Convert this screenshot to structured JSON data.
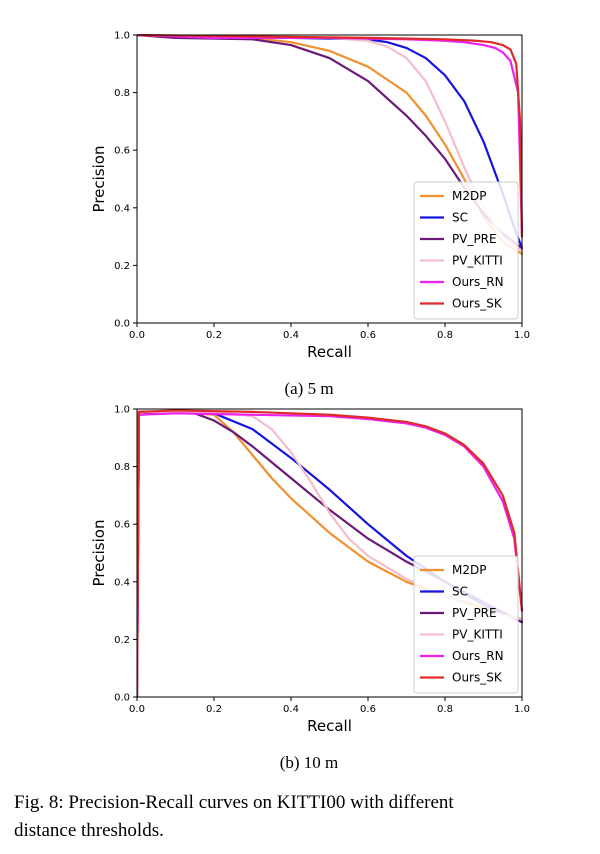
{
  "figure": {
    "caption_line1": "Fig. 8: Precision-Recall curves on KITTI00 with different",
    "caption_line2": "distance thresholds."
  },
  "series_styles": [
    {
      "name": "M2DP",
      "color": "#f0912e"
    },
    {
      "name": "SC",
      "color": "#1515e0"
    },
    {
      "name": "PV_PRE",
      "color": "#6b1a78"
    },
    {
      "name": "PV_KITTI",
      "color": "#f2bfc7"
    },
    {
      "name": "Ours_RN",
      "color": "#ee22ee"
    },
    {
      "name": "Ours_SK",
      "color": "#dd2a2a"
    }
  ],
  "chart_data": [
    {
      "type": "line",
      "subcaption": "(a) 5 m",
      "xlabel": "Recall",
      "ylabel": "Precision",
      "xlim": [
        0,
        1
      ],
      "ylim": [
        0,
        1
      ],
      "xticks": [
        "0.0",
        "0.2",
        "0.4",
        "0.6",
        "0.8",
        "1.0"
      ],
      "yticks": [
        "0.0",
        "0.2",
        "0.4",
        "0.6",
        "0.8",
        "1.0"
      ],
      "legend_position": "lower-right",
      "series": [
        {
          "name": "M2DP",
          "x": [
            0,
            0.1,
            0.3,
            0.4,
            0.5,
            0.6,
            0.7,
            0.75,
            0.8,
            0.85,
            0.9,
            0.95,
            1.0
          ],
          "y": [
            1.0,
            0.99,
            0.99,
            0.975,
            0.945,
            0.89,
            0.8,
            0.72,
            0.62,
            0.5,
            0.37,
            0.28,
            0.24
          ]
        },
        {
          "name": "SC",
          "x": [
            0,
            0.2,
            0.4,
            0.6,
            0.65,
            0.7,
            0.75,
            0.8,
            0.85,
            0.9,
            0.95,
            0.98,
            1.0
          ],
          "y": [
            1.0,
            0.99,
            0.99,
            0.985,
            0.975,
            0.955,
            0.92,
            0.86,
            0.77,
            0.63,
            0.45,
            0.33,
            0.26
          ]
        },
        {
          "name": "PV_PRE",
          "x": [
            0,
            0.1,
            0.3,
            0.4,
            0.5,
            0.6,
            0.7,
            0.75,
            0.8,
            0.85,
            0.9,
            0.95,
            1.0
          ],
          "y": [
            1.0,
            0.99,
            0.985,
            0.965,
            0.92,
            0.84,
            0.72,
            0.65,
            0.57,
            0.47,
            0.38,
            0.31,
            0.26
          ]
        },
        {
          "name": "PV_KITTI",
          "x": [
            0,
            0.3,
            0.5,
            0.6,
            0.65,
            0.7,
            0.75,
            0.8,
            0.85,
            0.9,
            0.95,
            1.0
          ],
          "y": [
            1.0,
            0.99,
            0.99,
            0.98,
            0.96,
            0.92,
            0.84,
            0.7,
            0.54,
            0.4,
            0.3,
            0.25
          ]
        },
        {
          "name": "Ours_RN",
          "x": [
            0,
            0.2,
            0.5,
            0.7,
            0.8,
            0.85,
            0.9,
            0.93,
            0.95,
            0.97,
            0.99,
            1.0
          ],
          "y": [
            1.0,
            0.99,
            0.99,
            0.985,
            0.98,
            0.975,
            0.965,
            0.955,
            0.94,
            0.91,
            0.8,
            0.3
          ]
        },
        {
          "name": "Ours_SK",
          "x": [
            0,
            0.3,
            0.6,
            0.8,
            0.88,
            0.92,
            0.95,
            0.97,
            0.985,
            0.995,
            1.0
          ],
          "y": [
            1.0,
            0.995,
            0.99,
            0.985,
            0.98,
            0.975,
            0.965,
            0.95,
            0.9,
            0.7,
            0.3
          ]
        }
      ]
    },
    {
      "type": "line",
      "subcaption": "(b) 10 m",
      "xlabel": "Recall",
      "ylabel": "Precision",
      "xlim": [
        0,
        1
      ],
      "ylim": [
        0,
        1
      ],
      "xticks": [
        "0.0",
        "0.2",
        "0.4",
        "0.6",
        "0.8",
        "1.0"
      ],
      "yticks": [
        "0.0",
        "0.2",
        "0.4",
        "0.6",
        "0.8",
        "1.0"
      ],
      "legend_position": "lower-right",
      "series": [
        {
          "name": "M2DP",
          "x": [
            0,
            0.005,
            0.1,
            0.2,
            0.25,
            0.3,
            0.35,
            0.4,
            0.45,
            0.5,
            0.55,
            0.6,
            0.7,
            0.8,
            0.9,
            1.0
          ],
          "y": [
            0,
            0.99,
            0.99,
            0.98,
            0.92,
            0.84,
            0.76,
            0.69,
            0.63,
            0.57,
            0.52,
            0.47,
            0.4,
            0.35,
            0.31,
            0.27
          ]
        },
        {
          "name": "SC",
          "x": [
            0,
            0.005,
            0.1,
            0.2,
            0.3,
            0.4,
            0.5,
            0.6,
            0.7,
            0.8,
            0.9,
            1.0
          ],
          "y": [
            0,
            0.99,
            0.99,
            0.985,
            0.93,
            0.83,
            0.72,
            0.6,
            0.49,
            0.4,
            0.32,
            0.26
          ]
        },
        {
          "name": "PV_PRE",
          "x": [
            0,
            0.005,
            0.05,
            0.15,
            0.2,
            0.25,
            0.3,
            0.4,
            0.5,
            0.6,
            0.7,
            0.8,
            0.9,
            1.0
          ],
          "y": [
            0,
            0.98,
            0.985,
            0.985,
            0.96,
            0.92,
            0.87,
            0.76,
            0.65,
            0.55,
            0.47,
            0.4,
            0.33,
            0.26
          ]
        },
        {
          "name": "PV_KITTI",
          "x": [
            0,
            0.005,
            0.2,
            0.3,
            0.35,
            0.4,
            0.45,
            0.5,
            0.55,
            0.6,
            0.7,
            0.8,
            0.9,
            1.0
          ],
          "y": [
            0,
            0.99,
            0.99,
            0.975,
            0.93,
            0.85,
            0.75,
            0.64,
            0.55,
            0.49,
            0.41,
            0.35,
            0.3,
            0.27
          ]
        },
        {
          "name": "Ours_RN",
          "x": [
            0,
            0.005,
            0.1,
            0.3,
            0.5,
            0.6,
            0.7,
            0.75,
            0.8,
            0.85,
            0.9,
            0.95,
            0.98,
            1.0
          ],
          "y": [
            0,
            0.98,
            0.985,
            0.98,
            0.975,
            0.965,
            0.95,
            0.935,
            0.91,
            0.87,
            0.8,
            0.68,
            0.55,
            0.3
          ]
        },
        {
          "name": "Ours_SK",
          "x": [
            0,
            0.005,
            0.1,
            0.3,
            0.5,
            0.6,
            0.7,
            0.75,
            0.8,
            0.85,
            0.9,
            0.95,
            0.98,
            1.0
          ],
          "y": [
            0,
            0.99,
            0.995,
            0.99,
            0.98,
            0.97,
            0.955,
            0.94,
            0.915,
            0.875,
            0.81,
            0.7,
            0.57,
            0.3
          ]
        }
      ]
    }
  ]
}
